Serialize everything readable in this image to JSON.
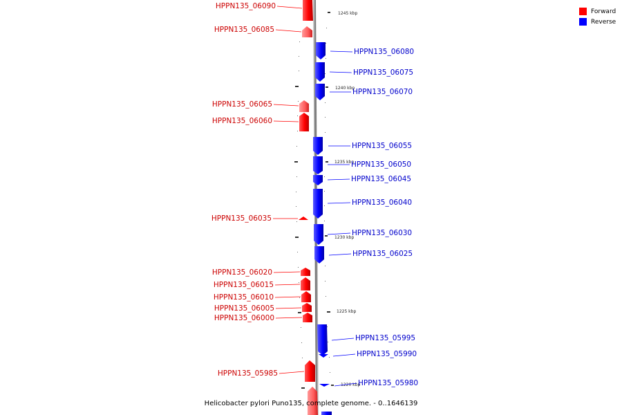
{
  "legend": {
    "items": [
      {
        "label": "Forward",
        "color": "#ff0000"
      },
      {
        "label": "Reverse",
        "color": "#0000ff"
      }
    ]
  },
  "footer": {
    "text": "Helicobacter pylori Puno135, complete genome. - 0..1646139"
  },
  "colors": {
    "forward": "#ff0000",
    "reverse": "#0000ff",
    "axis": "#999999"
  },
  "diagram": {
    "ticks": [
      "1245 kbp",
      "1240 kbp",
      "1235 kbp",
      "1230 kbp",
      "1225 kbp",
      "1220 kbp"
    ],
    "forward_genes": [
      "HPPN135_06090",
      "HPPN135_06085",
      "HPPN135_06065",
      "HPPN135_06060",
      "HPPN135_06035",
      "HPPN135_06020",
      "HPPN135_06015",
      "HPPN135_06010",
      "HPPN135_06005",
      "HPPN135_06000",
      "HPPN135_05985"
    ],
    "reverse_genes": [
      "HPPN135_06080",
      "HPPN135_06075",
      "HPPN135_06070",
      "HPPN135_06055",
      "HPPN135_06050",
      "HPPN135_06045",
      "HPPN135_06040",
      "HPPN135_06030",
      "HPPN135_06025",
      "HPPN135_05995",
      "HPPN135_05990",
      "HPPN135_05980"
    ]
  }
}
